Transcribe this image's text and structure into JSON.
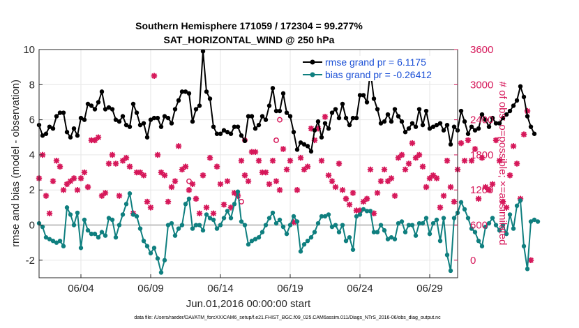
{
  "chart_data": {
    "type": "line",
    "title_line1": "Southern Hemisphere 171059 / 172304 = 99.277%",
    "title_line2": "SAT_HORIZONTAL_WIND @ 250 hPa",
    "ylabel": "rmse and bias (model - observation)",
    "ylabel_right": "# of obs: o=possible; ×=assimilated",
    "xlabel": "Jun.01,2016 00:00:00 start",
    "xlim": [
      1.0,
      31.0
    ],
    "ylim": [
      -3,
      10
    ],
    "ylim_right": [
      -300,
      3600
    ],
    "yticks": [
      -2,
      0,
      2,
      4,
      6,
      8,
      10
    ],
    "yticks_right": [
      0,
      600,
      1200,
      1800,
      2400,
      3000,
      3600
    ],
    "xticks": [
      {
        "x": 4,
        "label": "06/04"
      },
      {
        "x": 9,
        "label": "06/09"
      },
      {
        "x": 14,
        "label": "06/14"
      },
      {
        "x": 19,
        "label": "06/19"
      },
      {
        "x": 24,
        "label": "06/24"
      },
      {
        "x": 29,
        "label": "06/29"
      }
    ],
    "x_start": 1.0,
    "x_step": 0.25,
    "colors": {
      "rmse": "#000000",
      "bias": "#0f7f7f",
      "obs": "#d6185a",
      "zero": "#c0c0c0"
    },
    "series": [
      {
        "name": "rmse grand pr = 6.1175",
        "color": "#000000",
        "values": [
          5.7,
          5.1,
          5.2,
          5.6,
          5.5,
          6.2,
          6.4,
          6.4,
          5.3,
          5.0,
          5.5,
          5.1,
          6.1,
          6.0,
          6.9,
          6.8,
          6.6,
          7.0,
          7.6,
          6.6,
          6.7,
          6.6,
          6.0,
          5.9,
          6.2,
          5.7,
          5.6,
          6.9,
          6.4,
          5.7,
          5.8,
          5.0,
          6.0,
          6.1,
          6.1,
          5.6,
          6.2,
          6.1,
          5.8,
          6.6,
          7.1,
          7.6,
          7.6,
          7.5,
          5.9,
          6.6,
          6.8,
          9.9,
          7.6,
          7.2,
          5.6,
          5.2,
          5.2,
          5.4,
          5.3,
          5.2,
          5.6,
          5.6,
          5.1,
          4.8,
          6.2,
          6.2,
          5.5,
          5.7,
          6.2,
          6.0,
          6.8,
          7.8,
          6.5,
          6.5,
          7.5,
          6.4,
          6.2,
          5.3,
          4.3,
          4.7,
          4.6,
          4.5,
          4.2,
          5.4,
          5.9,
          5.0,
          5.8,
          5.5,
          6.4,
          6.6,
          6.1,
          6.9,
          6.1,
          5.7,
          6.1,
          6.1,
          7.4,
          7.4,
          7.0,
          8.8,
          7.2,
          6.6,
          5.8,
          5.9,
          6.3,
          5.9,
          6.6,
          6.2,
          5.9,
          5.3,
          5.5,
          5.8,
          5.6,
          6.6,
          5.7,
          6.5,
          5.5,
          5.6,
          5.7,
          5.8,
          5.4,
          5.7,
          4.6,
          5.6,
          5.4,
          6.5,
          5.9,
          5.2,
          5.6,
          5.4,
          5.5,
          6.3,
          6.0,
          5.6,
          6.1,
          5.8,
          5.8,
          6.1,
          6.3,
          6.5,
          6.8,
          7.1,
          7.9,
          7.3,
          6.2,
          5.6,
          5.2
        ]
      },
      {
        "name": "bias grand pr = -0.26412",
        "color": "#0f7f7f",
        "values": [
          0.1,
          -0.1,
          -0.7,
          -0.8,
          -0.9,
          -1.0,
          -0.9,
          -1.2,
          1.0,
          0.6,
          0.0,
          0.7,
          -1.3,
          0.3,
          -0.3,
          -0.5,
          -0.5,
          -0.7,
          -0.4,
          -0.6,
          0.4,
          0.3,
          -0.7,
          0.0,
          0.6,
          1.2,
          1.8,
          0.6,
          0.5,
          -0.2,
          -0.9,
          -1.2,
          -1.6,
          -1.3,
          -1.9,
          -2.7,
          -2.0,
          0.0,
          0.1,
          -0.6,
          -0.2,
          0.0,
          1.2,
          1.5,
          -0.2,
          0.0,
          0.0,
          -0.3,
          0.6,
          0.4,
          0.3,
          -0.2,
          0.0,
          0.4,
          0.8,
          0.4,
          1.2,
          1.9,
          0.2,
          0.0,
          -1.1,
          -0.9,
          -0.8,
          -0.7,
          -0.4,
          0.0,
          0.4,
          0.7,
          0.1,
          0.3,
          -0.1,
          -0.5,
          0.0,
          0.5,
          0.2,
          -1.5,
          -1.1,
          -0.9,
          -0.7,
          -0.4,
          0.1,
          0.5,
          0.5,
          0.6,
          -0.1,
          0.0,
          -0.4,
          0.0,
          -0.9,
          -0.7,
          -1.4,
          0.5,
          0.6,
          0.9,
          0.8,
          0.8,
          -0.4,
          -0.4,
          0.0,
          -0.3,
          -0.8,
          -0.7,
          -0.8,
          0.1,
          0.2,
          -0.4,
          0.0,
          0.0,
          -0.6,
          0.1,
          0.1,
          0.4,
          -0.5,
          0.1,
          0.3,
          -0.9,
          0.4,
          -1.7,
          -2.6,
          0.4,
          0.7,
          1.3,
          0.9,
          0.4,
          -0.2,
          -0.4,
          -0.9,
          -1.2,
          -0.1,
          0.1,
          0.4,
          0.0,
          -0.3,
          0.0,
          -0.5,
          0.6,
          -0.2,
          1.1,
          1.4,
          -1.2,
          -2.5,
          0.2,
          0.3,
          0.2
        ]
      },
      {
        "name": "# of obs assimilated",
        "color": "#d6185a",
        "values": [
          1400,
          1800,
          1100,
          800,
          1350,
          1700,
          1600,
          1200,
          1300,
          1350,
          1400,
          1200,
          1400,
          1500,
          1250,
          2050,
          2050,
          2100,
          1100,
          1150,
          1650,
          1800,
          1650,
          1100,
          1700,
          1750,
          1600,
          800,
          1500,
          1500,
          1450,
          1000,
          900,
          3150,
          1800,
          1500,
          1450,
          1000,
          1250,
          1350,
          1950,
          1550,
          1600,
          1200,
          1300,
          1050,
          800,
          1450,
          900,
          1750,
          800,
          1600,
          1300,
          950,
          1350,
          900,
          1150,
          1100,
          1700,
          1450,
          1350,
          1850,
          1850,
          1700,
          1500,
          1500,
          1300,
          1700,
          1350,
          1200,
          1900,
          1550,
          1700,
          650,
          1200,
          1750,
          1550,
          1600,
          2250,
          2050,
          2250,
          1700,
          2450,
          1450,
          1350,
          1250,
          1650,
          1200,
          1050,
          950,
          1150,
          850,
          850,
          1000,
          1050,
          1550,
          800,
          1150,
          1350,
          1550,
          1350,
          1400,
          1100,
          1750,
          1800,
          1550,
          1650,
          2000,
          1750,
          1800,
          1600,
          1250,
          1400,
          1450,
          1400,
          900,
          1100,
          1700,
          1250,
          1000,
          1550,
          2000,
          1700,
          2050,
          1700,
          1900,
          1050,
          1750,
          1250,
          1200,
          1300,
          2050,
          1700,
          1000,
          900,
          1450,
          1950,
          1650,
          1050,
          2150,
          2550,
          0
        ]
      }
    ],
    "possible_markers": [
      {
        "x": 11.75,
        "y": 1350
      },
      {
        "x": 15.5,
        "y": 1000
      },
      {
        "x": 15.75,
        "y": 2050
      },
      {
        "x": 18.0,
        "y": 2050
      },
      {
        "x": 18.25,
        "y": 2400
      }
    ],
    "legend": {
      "position": "top-right",
      "entries": [
        "rmse grand pr = 6.1175",
        "bias grand pr = -0.26412"
      ]
    },
    "footnote": "data file: /Users/raeder/DAI/ATM_forcXX/CAM6_setup/f.e21.FHIST_BGC.f09_025.CAM6assim.011/Diags_NTrS_2016-06/obs_diag_output.nc"
  }
}
